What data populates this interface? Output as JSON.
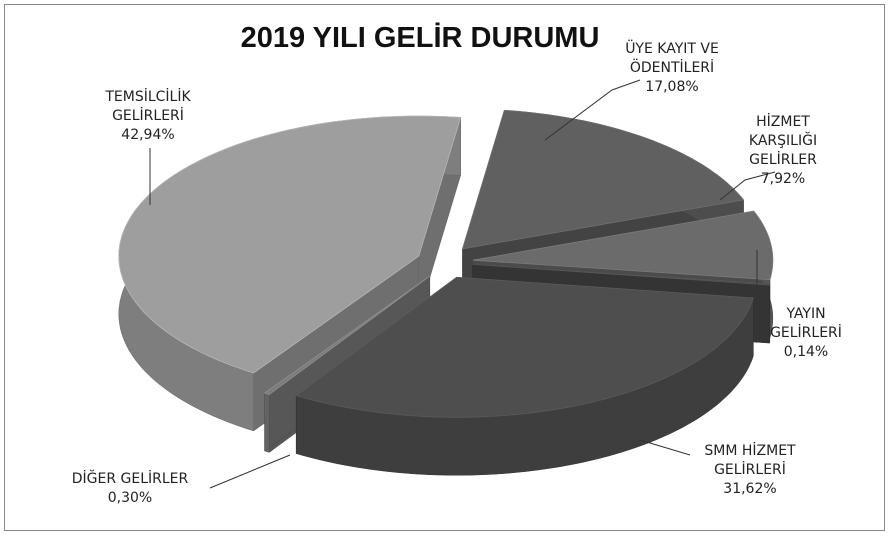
{
  "chart_data": {
    "type": "pie3d",
    "title": "2019 YILI GELİR DURUMU",
    "categories": [
      "ÜYE KAYIT VE\nÖDENTİLERİ",
      "HİZMET KARŞILIĞI\nGELİRLER",
      "YAYIN GELİRLERİ",
      "SMM HİZMET\nGELİRLERİ",
      "DİĞER GELİRLER",
      "TEMSİLCİLİK\nGELİRLERİ"
    ],
    "values": [
      17.08,
      7.92,
      0.14,
      31.62,
      0.3,
      42.94
    ],
    "value_labels": [
      "17,08%",
      "7,92%",
      "0,14%",
      "31,62%",
      "0,30%",
      "42,94%"
    ],
    "colors": [
      "#606060",
      "#6b6b6b",
      "#4a4a4a",
      "#4e4e4e",
      "#7c7c7c",
      "#9e9e9e"
    ]
  }
}
